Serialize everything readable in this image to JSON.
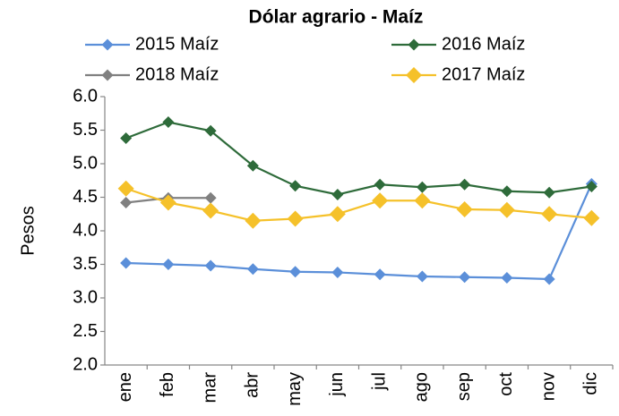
{
  "chart_data": {
    "type": "line",
    "title": "Dólar agrario  - Maíz",
    "y_label": "Pesos",
    "categories": [
      "ene",
      "feb",
      "mar",
      "abr",
      "may",
      "jun",
      "jul",
      "ago",
      "sep",
      "oct",
      "nov",
      "dic"
    ],
    "series": [
      {
        "name": "2015 Maíz",
        "color": "#5b8fd9",
        "values": [
          3.52,
          3.5,
          3.48,
          3.43,
          3.39,
          3.38,
          3.35,
          3.32,
          3.31,
          3.3,
          3.28,
          4.7
        ]
      },
      {
        "name": "2016 Maíz",
        "color": "#2e6b3a",
        "values": [
          5.38,
          5.62,
          5.49,
          4.97,
          4.67,
          4.54,
          4.69,
          4.65,
          4.69,
          4.59,
          4.57,
          4.66
        ]
      },
      {
        "name": "2018 Maíz",
        "color": "#808080",
        "values": [
          4.42,
          4.49,
          4.49,
          null,
          null,
          null,
          null,
          null,
          null,
          null,
          null,
          null
        ]
      },
      {
        "name": "2017 Maíz",
        "color": "#f5c12a",
        "values": [
          4.63,
          4.42,
          4.3,
          4.15,
          4.18,
          4.25,
          4.45,
          4.45,
          4.32,
          4.31,
          4.25,
          4.19
        ]
      }
    ],
    "ylim": [
      2,
      6
    ],
    "yticks": [
      {
        "value": 2,
        "label": "2.0"
      },
      2.5,
      {
        "value": 3,
        "label": "3.0"
      },
      3.5,
      {
        "value": 4,
        "label": "4.0"
      },
      4.5,
      {
        "value": 5,
        "label": "5.0"
      },
      5.5,
      {
        "value": 6,
        "label": "6.0"
      }
    ],
    "grid": false
  }
}
